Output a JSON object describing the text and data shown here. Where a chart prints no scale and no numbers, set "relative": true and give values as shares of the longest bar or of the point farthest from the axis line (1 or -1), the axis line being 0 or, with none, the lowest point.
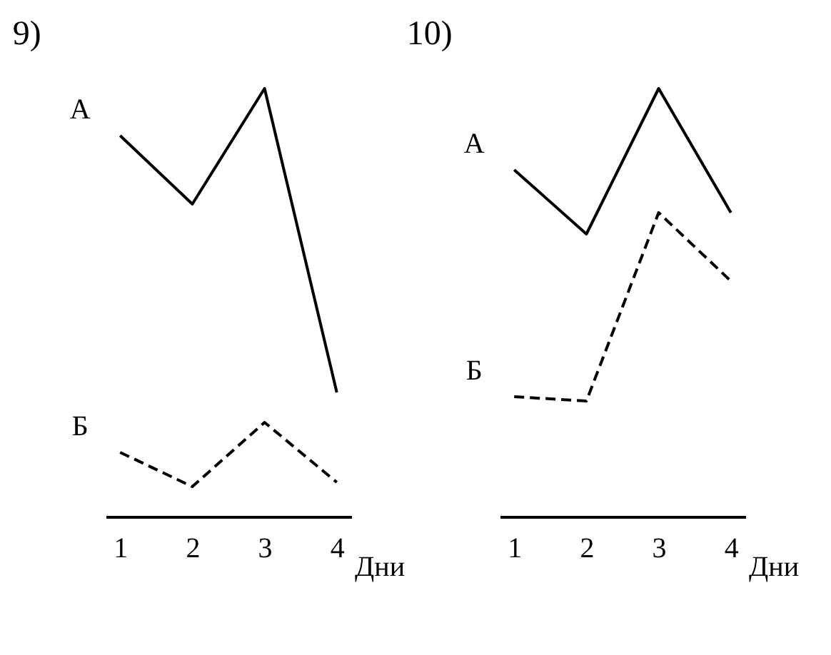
{
  "chart_data": [
    {
      "type": "line",
      "title": "9)",
      "xlabel": "Дни",
      "categories": [
        "1",
        "2",
        "3",
        "4"
      ],
      "relative": true,
      "legend": false,
      "grid": false,
      "series": [
        {
          "name": "А",
          "color": "#000000",
          "line_style": "solid",
          "values": [
            0.89,
            0.73,
            1,
            0.29
          ]
        },
        {
          "name": "Б",
          "color": "#000000",
          "line_style": "dashed",
          "values": [
            0.15,
            0.07,
            0.22,
            0.08
          ]
        }
      ]
    },
    {
      "type": "line",
      "title": "10)",
      "xlabel": "Дни",
      "categories": [
        "1",
        "2",
        "3",
        "4"
      ],
      "relative": true,
      "legend": false,
      "grid": false,
      "series": [
        {
          "name": "А",
          "color": "#000000",
          "line_style": "solid",
          "values": [
            0.81,
            0.66,
            1,
            0.71
          ]
        },
        {
          "name": "Б",
          "color": "#000000",
          "line_style": "dashed",
          "values": [
            0.28,
            0.27,
            0.71,
            0.55
          ]
        }
      ]
    }
  ]
}
